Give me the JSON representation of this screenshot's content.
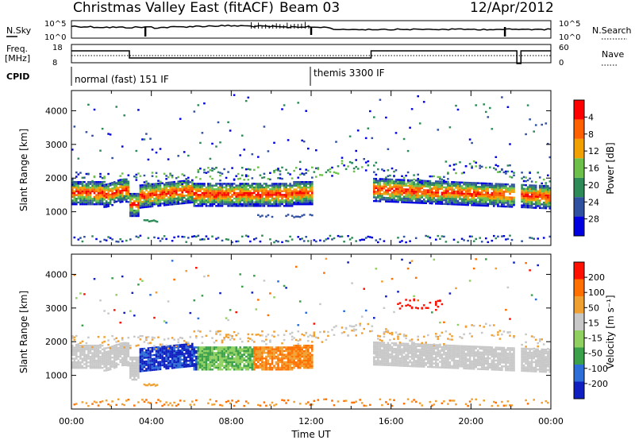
{
  "header": {
    "title": "Christmas Valley East (fitACF)",
    "beam": "Beam 03",
    "date": "12/Apr/2012"
  },
  "labels": {
    "nsky": "N.Sky",
    "nsearch": "N.Search",
    "freq": "Freq.",
    "freq_unit": "[MHz]",
    "nave": "Nave",
    "cpid": "CPID"
  },
  "top_panels": {
    "nsky_ticks": [
      "10^5",
      "10^0"
    ],
    "nsearch_ticks": [
      "10^5",
      "10^0"
    ],
    "freq_ticks": [
      "18",
      "8"
    ],
    "nave_ticks": [
      "60",
      "0"
    ]
  },
  "cpid_segments": [
    {
      "label": "normal (fast) 151 IF",
      "start_hr": 0,
      "end_hr": 12
    },
    {
      "label": "themis 3300 IF",
      "start_hr": 12,
      "end_hr": 24
    }
  ],
  "chart_data": [
    {
      "type": "heatmap",
      "panel": "power",
      "xlabel": "",
      "ylabel": "Slant Range [km]",
      "ylim": [
        0,
        4600
      ],
      "yticks": [
        "1000",
        "2000",
        "3000",
        "4000"
      ],
      "colorbar": {
        "label": "Power [dB]",
        "ticks": [
          "4",
          "8",
          "12",
          "16",
          "20",
          "24",
          "28"
        ],
        "colors": [
          "#0000e0",
          "#3050a0",
          "#2e8b57",
          "#6cc04a",
          "#f0a000",
          "#ff6000",
          "#ff0000"
        ]
      }
    },
    {
      "type": "heatmap",
      "panel": "velocity",
      "xlabel": "Time UT",
      "ylabel": "Slant Range [km]",
      "ylim": [
        0,
        4600
      ],
      "yticks": [
        "1000",
        "2000",
        "3000",
        "4000"
      ],
      "xticks": [
        "00:00",
        "04:00",
        "08:00",
        "12:00",
        "16:00",
        "20:00",
        "00:00"
      ],
      "colorbar": {
        "label": "Velocity [m s⁻¹]",
        "ticks": [
          "200",
          "100",
          "50",
          "15",
          "-15",
          "-50",
          "-100",
          "-200"
        ],
        "colors": [
          "#1020c0",
          "#2e6ed8",
          "#3aa04a",
          "#90d060",
          "#c8c8c8",
          "#f0a030",
          "#ff7000",
          "#ff1000"
        ]
      }
    }
  ]
}
